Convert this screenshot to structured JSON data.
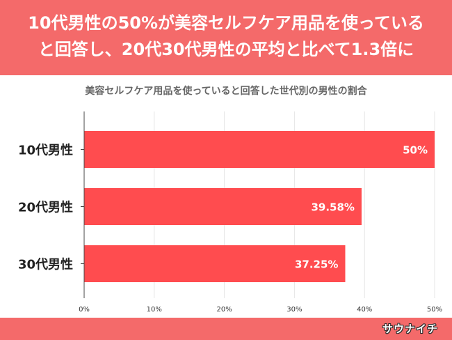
{
  "headline": {
    "line1": "10代男性の50%が美容セルフケア用品を使っている",
    "line2": "と回答し、20代30代男性の平均と比べて1.3倍に"
  },
  "brand": {
    "logo_text": "サウナイチ"
  },
  "colors": {
    "header_bg": "#f46a6a",
    "bar": "#ff4c4f",
    "grid": "#e5e5e5",
    "axis": "#444444"
  },
  "chart_data": {
    "type": "bar",
    "orientation": "horizontal",
    "title": "美容セルフケア用品を使っていると回答した世代別の男性の割合",
    "categories": [
      "10代男性",
      "20代男性",
      "30代男性"
    ],
    "values": [
      50,
      39.58,
      37.25
    ],
    "value_labels": [
      "50%",
      "39.58%",
      "37.25%"
    ],
    "xlim": [
      0,
      50
    ],
    "xticks": [
      0,
      10,
      20,
      30,
      40,
      50
    ],
    "xtick_labels": [
      "0%",
      "10%",
      "20%",
      "30%",
      "40%",
      "50%"
    ],
    "grid": true
  }
}
